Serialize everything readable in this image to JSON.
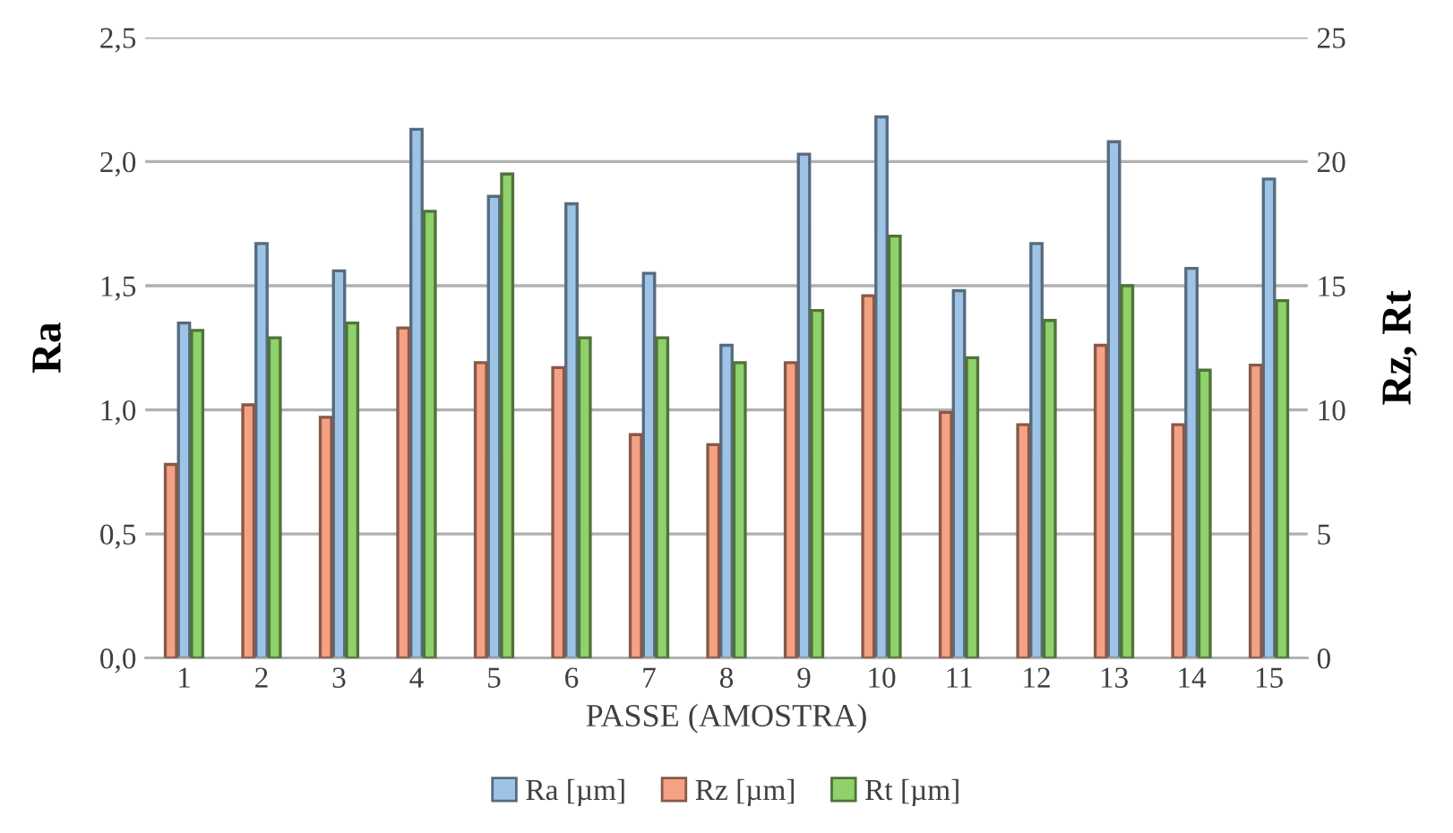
{
  "chart_data": {
    "type": "bar",
    "xlabel": "PASSE (AMOSTRA)",
    "ylabel": "Ra",
    "y2label": "Rz, Rt",
    "categories": [
      "1",
      "2",
      "3",
      "4",
      "5",
      "6",
      "7",
      "8",
      "9",
      "10",
      "11",
      "12",
      "13",
      "14",
      "15"
    ],
    "series": [
      {
        "name": "Ra [µm]",
        "color": "#9dc3e6",
        "axis": "y",
        "values": [
          1.35,
          1.67,
          1.56,
          2.13,
          1.86,
          1.83,
          1.55,
          1.26,
          2.03,
          2.18,
          1.48,
          1.67,
          2.08,
          1.57,
          1.93
        ]
      },
      {
        "name": "Rz [µm]",
        "color": "#f4a184",
        "axis": "y2",
        "values": [
          7.8,
          10.2,
          9.7,
          13.3,
          11.9,
          11.7,
          9.0,
          8.6,
          11.9,
          14.6,
          9.9,
          9.4,
          12.6,
          9.4,
          11.8
        ]
      },
      {
        "name": "Rt [µm]",
        "color": "#8fd16a",
        "axis": "y2",
        "values": [
          13.2,
          12.9,
          13.5,
          18.0,
          19.5,
          12.9,
          12.9,
          11.9,
          14.0,
          17.0,
          12.1,
          13.6,
          15.0,
          11.6,
          14.4
        ]
      }
    ],
    "ylim": [
      0,
      2.5
    ],
    "yticks": [
      {
        "value": 0,
        "label": "0,0"
      },
      {
        "value": 0.5,
        "label": "0,5"
      },
      {
        "value": 1,
        "label": "1,0"
      },
      {
        "value": 1.5,
        "label": "1,5"
      },
      {
        "value": 2,
        "label": "2,0"
      },
      {
        "value": 2.5,
        "label": "2,5"
      }
    ],
    "y2lim": [
      0,
      25
    ],
    "y2ticks": [
      0,
      5,
      10,
      15,
      20,
      25
    ],
    "grid": "y",
    "legend": "bottom"
  }
}
